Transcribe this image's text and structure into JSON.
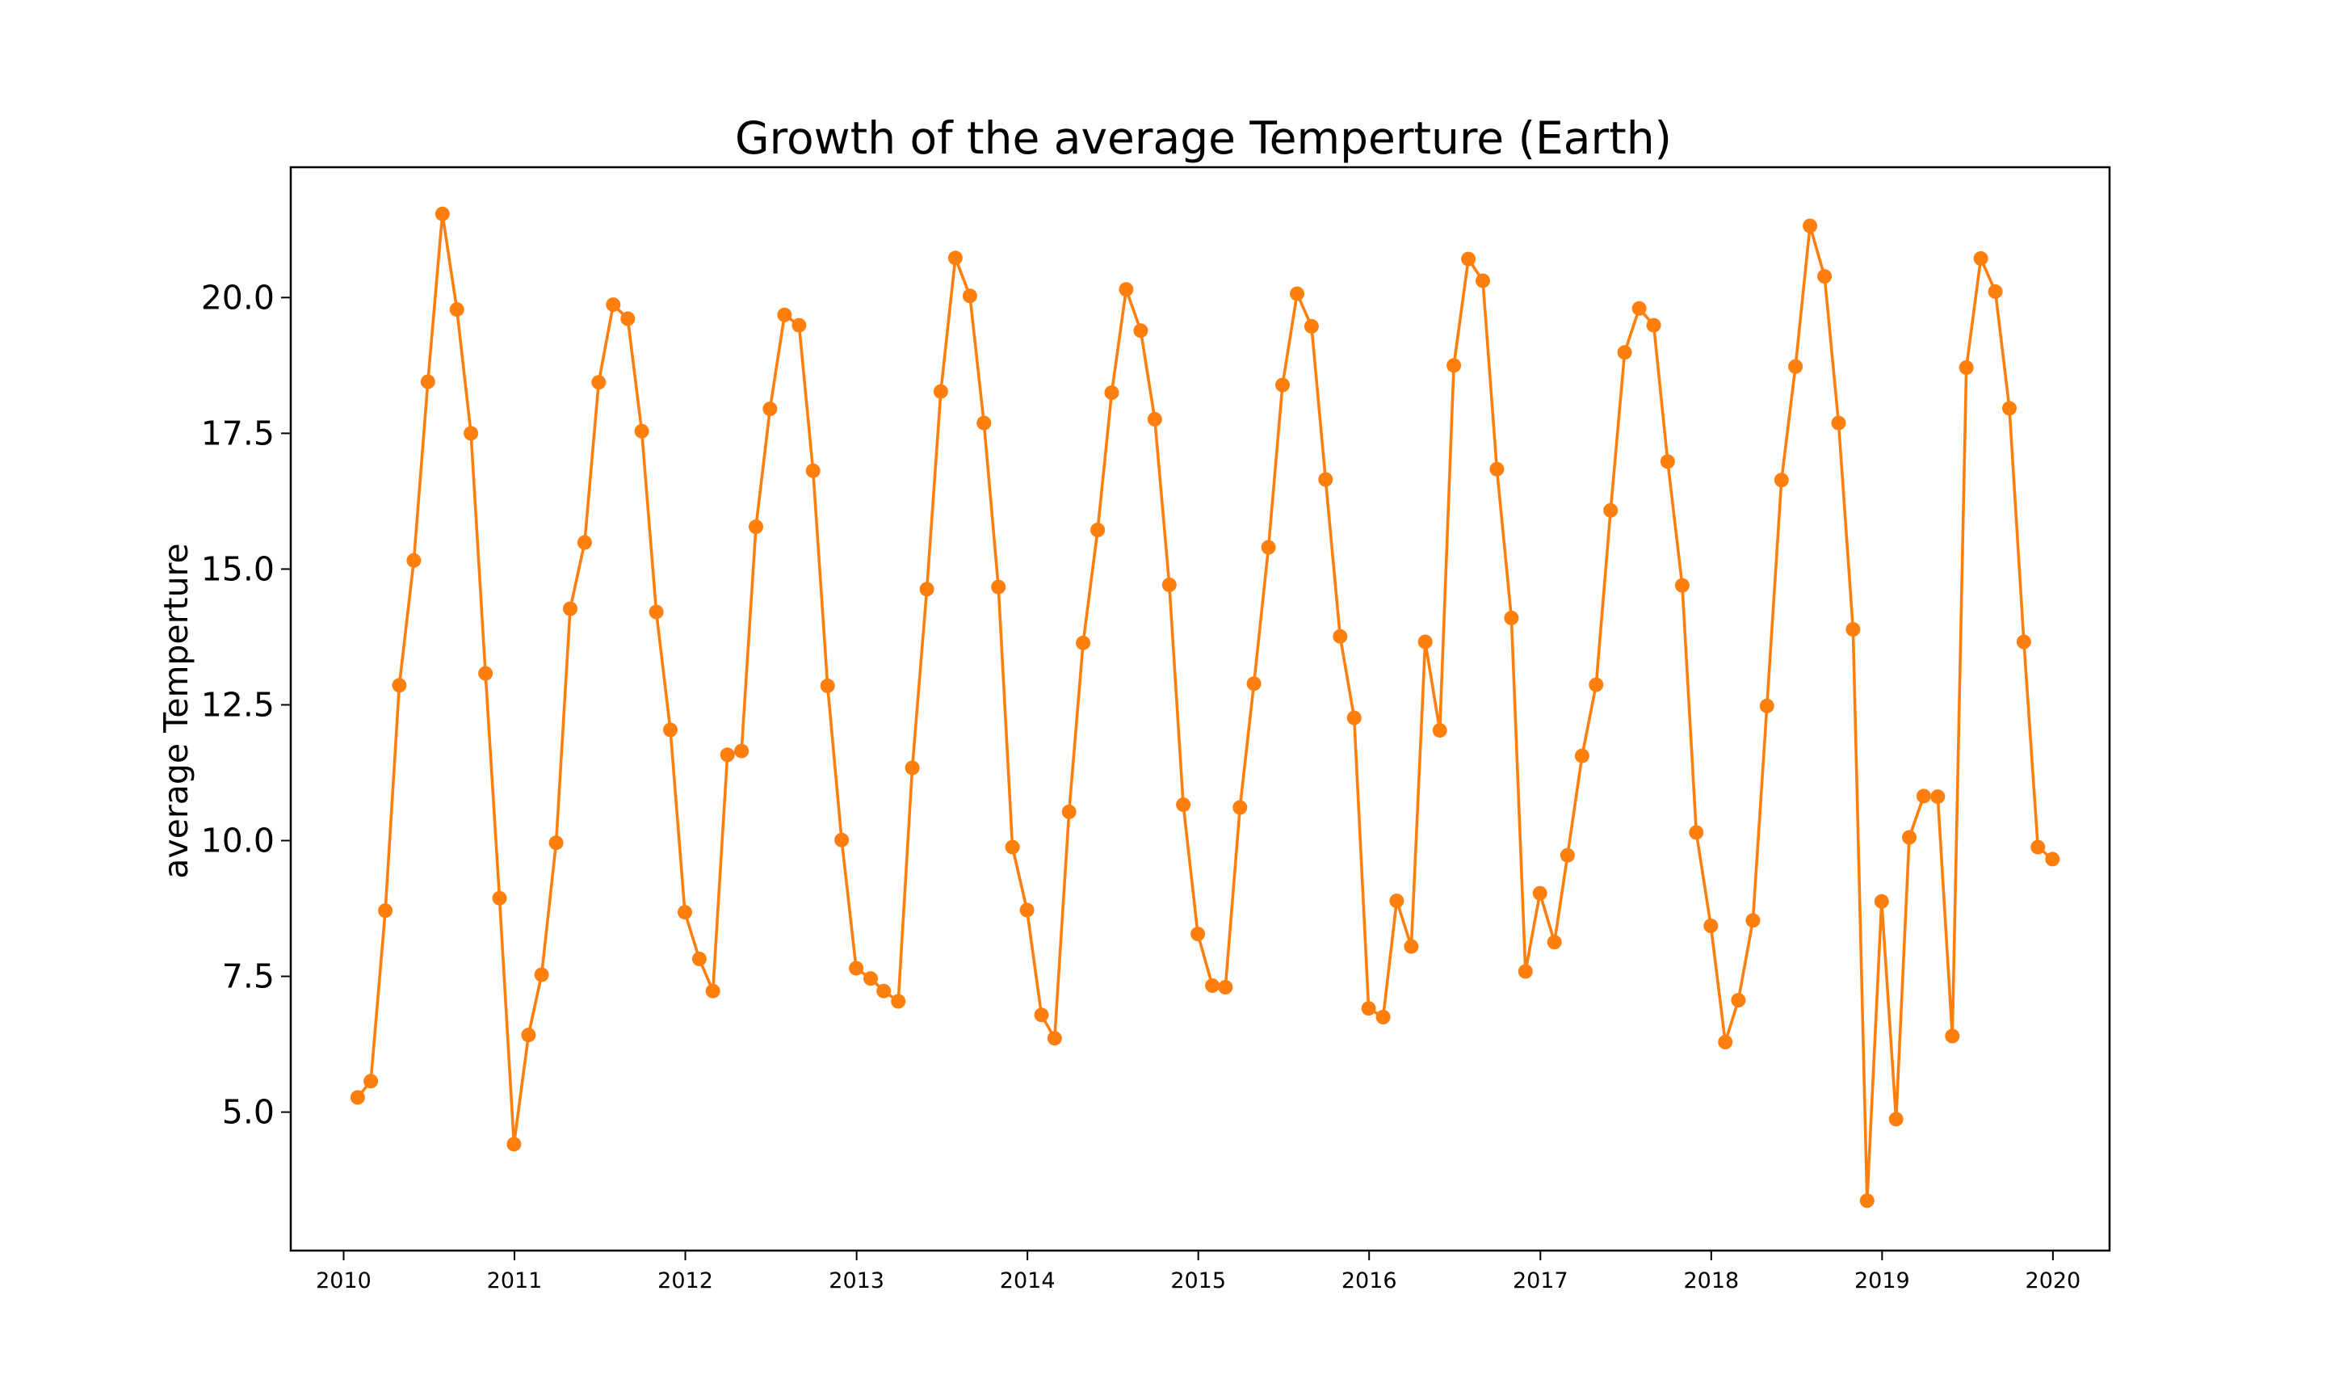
{
  "chart_data": {
    "type": "line",
    "title": "Growth of the average Temperture (Earth)",
    "xlabel": "",
    "ylabel": "average Temperture",
    "x_ticks": [
      "2010",
      "2011",
      "2012",
      "2013",
      "2014",
      "2015",
      "2016",
      "2017",
      "2018",
      "2019",
      "2020"
    ],
    "y_ticks": [
      "5.0",
      "7.5",
      "10.0",
      "12.5",
      "15.0",
      "17.5",
      "20.0"
    ],
    "xlim": [
      "2009-09-10",
      "2020-05-01"
    ],
    "ylim": [
      2.45,
      22.4
    ],
    "grid": false,
    "legend": "none",
    "colors": {
      "line": "#ff7f0e",
      "marker": "#ff7f0e",
      "axes": "#000000"
    },
    "series": [
      {
        "x": [
          "2010-01-31",
          "2010-02-28",
          "2010-03-31",
          "2010-04-30",
          "2010-05-31",
          "2010-06-30",
          "2010-07-31",
          "2010-08-31",
          "2010-09-30",
          "2010-10-31",
          "2010-11-30",
          "2010-12-31",
          "2011-01-31",
          "2011-02-28",
          "2011-03-31",
          "2011-04-30",
          "2011-05-31",
          "2011-06-30",
          "2011-07-31",
          "2011-08-31",
          "2011-09-30",
          "2011-10-31",
          "2011-11-30",
          "2011-12-31",
          "2012-01-31",
          "2012-02-29",
          "2012-03-31",
          "2012-04-30",
          "2012-05-31",
          "2012-06-30",
          "2012-07-31",
          "2012-08-31",
          "2012-09-30",
          "2012-10-31",
          "2012-11-30",
          "2012-12-31",
          "2013-01-31",
          "2013-02-28",
          "2013-03-31",
          "2013-04-30",
          "2013-05-31",
          "2013-06-30",
          "2013-07-31",
          "2013-08-31",
          "2013-09-30",
          "2013-10-31",
          "2013-11-30",
          "2013-12-31",
          "2014-01-31",
          "2014-02-28",
          "2014-03-31",
          "2014-04-30",
          "2014-05-31",
          "2014-06-30",
          "2014-07-31",
          "2014-08-31",
          "2014-09-30",
          "2014-10-31",
          "2014-11-30",
          "2014-12-31",
          "2015-01-31",
          "2015-02-28",
          "2015-03-31",
          "2015-04-30",
          "2015-05-31",
          "2015-06-30",
          "2015-07-31",
          "2015-08-31",
          "2015-09-30",
          "2015-10-31",
          "2015-11-30",
          "2015-12-31",
          "2016-01-31",
          "2016-02-29",
          "2016-03-31",
          "2016-04-30",
          "2016-05-31",
          "2016-06-30",
          "2016-07-31",
          "2016-08-31",
          "2016-09-30",
          "2016-10-31",
          "2016-11-30",
          "2016-12-31",
          "2017-01-31",
          "2017-02-28",
          "2017-03-31",
          "2017-04-30",
          "2017-05-31",
          "2017-06-30",
          "2017-07-31",
          "2017-08-31",
          "2017-09-30",
          "2017-10-31",
          "2017-11-30",
          "2017-12-31",
          "2018-01-31",
          "2018-02-28",
          "2018-03-31",
          "2018-04-30",
          "2018-05-31",
          "2018-06-30",
          "2018-07-31",
          "2018-08-31",
          "2018-09-30",
          "2018-10-31",
          "2018-11-30",
          "2018-12-31",
          "2019-01-31",
          "2019-02-28",
          "2019-03-31",
          "2019-04-30",
          "2019-05-31",
          "2019-06-30",
          "2019-07-31",
          "2019-08-31",
          "2019-09-30",
          "2019-10-31",
          "2019-11-30",
          "2019-12-31"
        ],
        "y": [
          5.27,
          5.57,
          8.71,
          12.86,
          15.16,
          18.45,
          21.54,
          19.78,
          17.5,
          13.08,
          8.94,
          4.41,
          6.42,
          7.53,
          9.96,
          14.27,
          15.49,
          18.44,
          19.87,
          19.61,
          17.54,
          14.21,
          12.04,
          8.68,
          7.82,
          7.23,
          11.58,
          11.65,
          15.78,
          17.95,
          19.68,
          19.49,
          16.81,
          12.85,
          10.01,
          7.65,
          7.46,
          7.23,
          7.04,
          11.34,
          14.63,
          18.27,
          20.73,
          20.03,
          17.69,
          14.67,
          9.88,
          8.72,
          6.79,
          6.36,
          10.53,
          13.64,
          15.72,
          18.25,
          20.15,
          19.39,
          17.76,
          14.71,
          10.66,
          8.28,
          7.33,
          7.3,
          10.61,
          12.89,
          15.4,
          18.39,
          20.07,
          19.47,
          16.65,
          13.76,
          12.26,
          6.91,
          6.75,
          8.89,
          8.05,
          13.66,
          12.03,
          18.75,
          20.71,
          20.31,
          16.84,
          14.1,
          7.59,
          9.03,
          8.13,
          9.73,
          11.56,
          12.87,
          16.08,
          18.99,
          19.8,
          19.49,
          16.98,
          14.7,
          10.15,
          8.43,
          6.29,
          7.06,
          8.53,
          12.48,
          16.64,
          18.73,
          21.32,
          20.39,
          17.69,
          13.89,
          3.37,
          8.88,
          4.87,
          10.06,
          10.82,
          10.81,
          6.4,
          18.71,
          20.72,
          20.11,
          17.96,
          13.66,
          9.88,
          9.66
        ]
      }
    ]
  }
}
